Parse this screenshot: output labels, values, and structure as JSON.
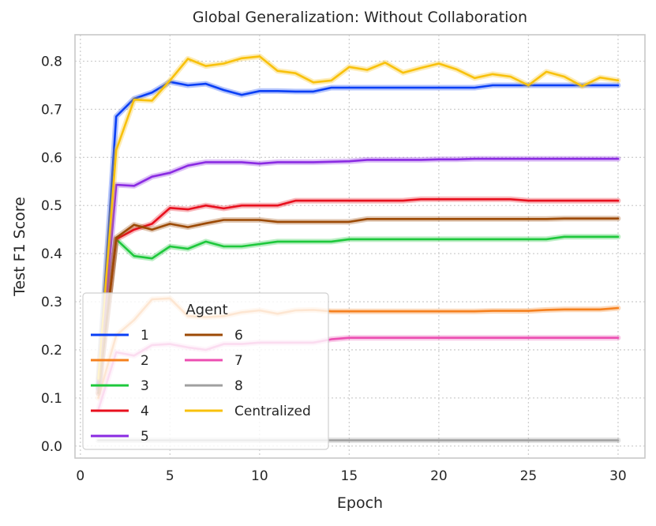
{
  "chart_data": {
    "type": "line",
    "title": "Global Generalization: Without Collaboration",
    "xlabel": "Epoch",
    "ylabel": "Test F1 Score",
    "xlim": [
      -0.3,
      31.5
    ],
    "ylim": [
      -0.025,
      0.855
    ],
    "xticks": [
      0,
      5,
      10,
      15,
      20,
      25,
      30
    ],
    "yticks": [
      0.0,
      0.1,
      0.2,
      0.3,
      0.4,
      0.5,
      0.6,
      0.7,
      0.8
    ],
    "grid": true,
    "legend": {
      "title": "Agent",
      "placement": "lower-left",
      "columns": 2
    },
    "x": [
      1,
      2,
      3,
      4,
      5,
      6,
      7,
      8,
      9,
      10,
      11,
      12,
      13,
      14,
      15,
      16,
      17,
      18,
      19,
      20,
      21,
      22,
      23,
      24,
      25,
      26,
      27,
      28,
      29,
      30
    ],
    "series": [
      {
        "name": "1",
        "color": "#0a3ff5",
        "values": [
          0.13,
          0.685,
          0.722,
          0.735,
          0.757,
          0.75,
          0.753,
          0.74,
          0.73,
          0.738,
          0.738,
          0.737,
          0.737,
          0.745,
          0.745,
          0.745,
          0.745,
          0.745,
          0.745,
          0.745,
          0.745,
          0.745,
          0.75,
          0.75,
          0.75,
          0.75,
          0.75,
          0.75,
          0.75,
          0.75
        ]
      },
      {
        "name": "2",
        "color": "#f5801e",
        "values": [
          0.1,
          0.23,
          0.262,
          0.305,
          0.307,
          0.27,
          0.268,
          0.27,
          0.278,
          0.282,
          0.275,
          0.282,
          0.283,
          0.28,
          0.28,
          0.28,
          0.28,
          0.28,
          0.28,
          0.28,
          0.28,
          0.28,
          0.281,
          0.281,
          0.281,
          0.283,
          0.284,
          0.284,
          0.284,
          0.287
        ]
      },
      {
        "name": "3",
        "color": "#1ec83c",
        "values": [
          0.12,
          0.43,
          0.395,
          0.39,
          0.415,
          0.41,
          0.425,
          0.415,
          0.415,
          0.42,
          0.425,
          0.425,
          0.425,
          0.425,
          0.43,
          0.43,
          0.43,
          0.43,
          0.43,
          0.43,
          0.43,
          0.43,
          0.43,
          0.43,
          0.43,
          0.43,
          0.435,
          0.435,
          0.435,
          0.435
        ]
      },
      {
        "name": "4",
        "color": "#e8101e",
        "values": [
          0.11,
          0.43,
          0.45,
          0.462,
          0.495,
          0.492,
          0.5,
          0.494,
          0.5,
          0.5,
          0.5,
          0.51,
          0.51,
          0.51,
          0.51,
          0.51,
          0.51,
          0.51,
          0.513,
          0.513,
          0.513,
          0.513,
          0.513,
          0.513,
          0.51,
          0.51,
          0.51,
          0.51,
          0.51,
          0.51
        ]
      },
      {
        "name": "5",
        "color": "#8a2be2",
        "values": [
          0.12,
          0.543,
          0.541,
          0.56,
          0.568,
          0.583,
          0.59,
          0.59,
          0.59,
          0.587,
          0.59,
          0.59,
          0.59,
          0.591,
          0.592,
          0.595,
          0.595,
          0.595,
          0.595,
          0.596,
          0.596,
          0.597,
          0.597,
          0.597,
          0.597,
          0.597,
          0.597,
          0.597,
          0.597,
          0.597
        ]
      },
      {
        "name": "6",
        "color": "#9c4a05",
        "values": [
          0.11,
          0.433,
          0.46,
          0.45,
          0.462,
          0.455,
          0.463,
          0.47,
          0.47,
          0.47,
          0.466,
          0.466,
          0.466,
          0.466,
          0.466,
          0.472,
          0.472,
          0.472,
          0.472,
          0.472,
          0.472,
          0.472,
          0.472,
          0.472,
          0.472,
          0.472,
          0.473,
          0.473,
          0.473,
          0.473
        ]
      },
      {
        "name": "7",
        "color": "#ec4fb2",
        "values": [
          0.075,
          0.195,
          0.188,
          0.21,
          0.212,
          0.205,
          0.2,
          0.212,
          0.212,
          0.215,
          0.215,
          0.215,
          0.215,
          0.222,
          0.225,
          0.225,
          0.225,
          0.225,
          0.225,
          0.225,
          0.225,
          0.225,
          0.225,
          0.225,
          0.225,
          0.225,
          0.225,
          0.225,
          0.225,
          0.225
        ]
      },
      {
        "name": "8",
        "color": "#a0a0a0",
        "values": [
          0.012,
          0.012,
          0.012,
          0.012,
          0.012,
          0.012,
          0.012,
          0.012,
          0.012,
          0.012,
          0.012,
          0.012,
          0.012,
          0.012,
          0.012,
          0.012,
          0.012,
          0.012,
          0.012,
          0.012,
          0.012,
          0.012,
          0.012,
          0.012,
          0.012,
          0.012,
          0.012,
          0.012,
          0.012,
          0.012
        ]
      },
      {
        "name": "Centralized",
        "color": "#f8c10c",
        "values": [
          0.14,
          0.615,
          0.72,
          0.718,
          0.76,
          0.805,
          0.79,
          0.795,
          0.806,
          0.81,
          0.78,
          0.775,
          0.756,
          0.76,
          0.788,
          0.782,
          0.797,
          0.776,
          0.786,
          0.795,
          0.783,
          0.765,
          0.773,
          0.768,
          0.75,
          0.778,
          0.768,
          0.748,
          0.766,
          0.76
        ]
      }
    ]
  }
}
